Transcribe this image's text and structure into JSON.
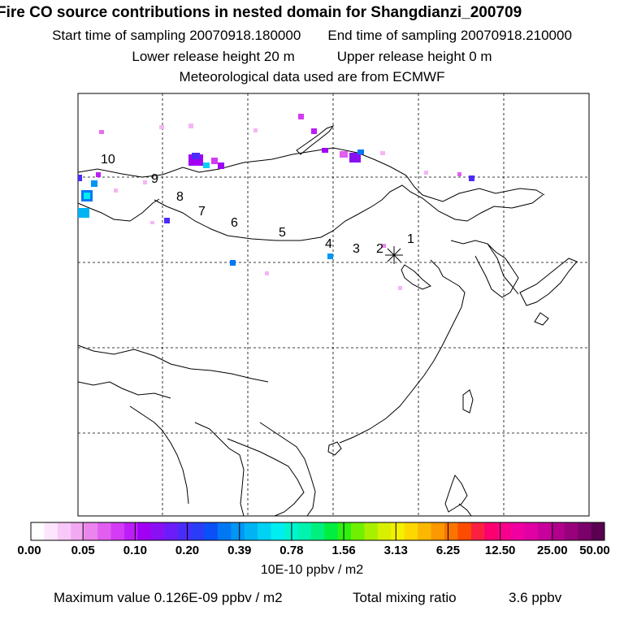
{
  "header": {
    "title": "Fire CO source contributions in nested domain for Shangdianzi_200709",
    "start_label": "Start time of sampling 20070918.180000",
    "end_label": "End time of sampling 20070918.210000",
    "lower_label": "Lower release height   20 m",
    "upper_label": "Upper release height    0 m",
    "met_label": "Meteorological data used are from ECMWF"
  },
  "map": {
    "trajectory_labels": [
      "1",
      "2",
      "3",
      "4",
      "5",
      "6",
      "7",
      "8",
      "9",
      "10"
    ],
    "receptor_marker": "asterisk-icon"
  },
  "colorbar": {
    "tick_labels": [
      "0.00",
      "0.05",
      "0.10",
      "0.20",
      "0.39",
      "0.78",
      "1.56",
      "3.13",
      "6.25",
      "12.50",
      "25.00",
      "50.00"
    ],
    "units": "10E-10 ppbv / m2",
    "colors": [
      "#ffffff",
      "#fde6fd",
      "#f8c8f8",
      "#f2a8f2",
      "#ec84ee",
      "#e25ef0",
      "#d33cf4",
      "#bd1ef8",
      "#a000f4",
      "#8a10f4",
      "#6c1cf8",
      "#4a2cf8",
      "#2a3cf8",
      "#0a50f8",
      "#0078f4",
      "#0096f4",
      "#00b4f4",
      "#00d2f4",
      "#00eef0",
      "#00f4d0",
      "#00f4b0",
      "#00f080",
      "#00ee40",
      "#30f010",
      "#70f000",
      "#a8f000",
      "#d8f000",
      "#f4f000",
      "#fcd800",
      "#fcb800",
      "#fc9800",
      "#fc7400",
      "#fc4c00",
      "#fc2040",
      "#fc0070",
      "#f8008c",
      "#f000a0",
      "#e000a4",
      "#c8009c",
      "#b0008c",
      "#98007c",
      "#7a006a",
      "#5a0050"
    ]
  },
  "footer": {
    "max_label": "Maximum value  0.126E-09 ppbv / m2",
    "total_label": "Total mixing ratio",
    "total_value": "3.6 ppbv"
  }
}
